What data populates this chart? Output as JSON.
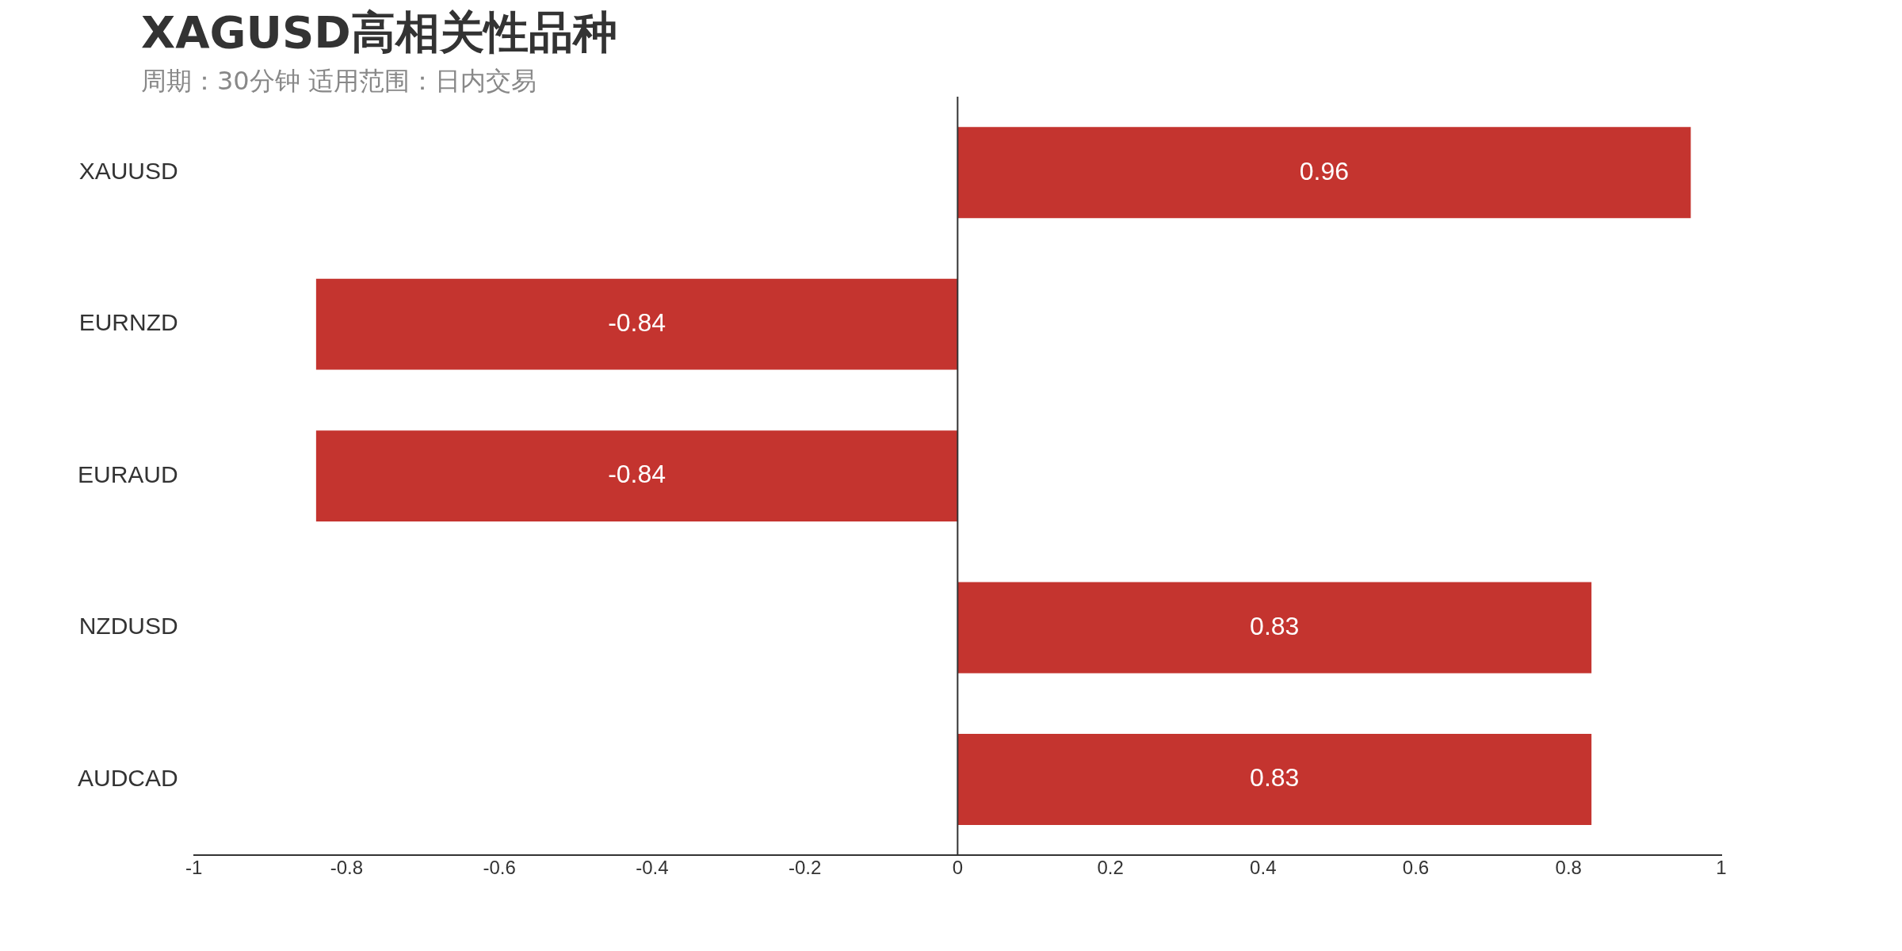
{
  "chart_data": {
    "type": "bar",
    "orientation": "horizontal",
    "title": "XAGUSD高相关性品种",
    "subtitle": "周期：30分钟 适用范围：日内交易",
    "categories": [
      "XAUUSD",
      "EURNZD",
      "EURAUD",
      "NZDUSD",
      "AUDCAD"
    ],
    "values": [
      0.96,
      -0.84,
      -0.84,
      0.83,
      0.83
    ],
    "color": "#c4342f",
    "xlim": [
      -1,
      1
    ],
    "xticks": [
      -1,
      -0.8,
      -0.6,
      -0.4,
      -0.2,
      0,
      0.2,
      0.4,
      0.6,
      0.8,
      1
    ],
    "ref_lines": [
      {
        "axis": "x",
        "value": 0,
        "color": "#333333"
      }
    ],
    "data_labels": true,
    "grid": false,
    "legend": false
  }
}
